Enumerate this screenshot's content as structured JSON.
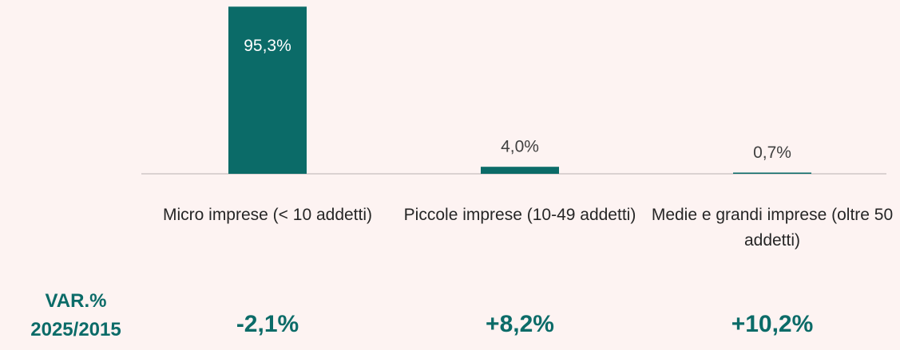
{
  "chart_data": {
    "type": "bar",
    "categories": [
      "Micro imprese (< 10 addetti)",
      "Piccole imprese (10-49 addetti)",
      "Medie e grandi imprese (oltre 50 addetti)"
    ],
    "values": [
      95.3,
      4.0,
      0.7
    ],
    "value_labels": [
      "95,3%",
      "4,0%",
      "0,7%"
    ],
    "color": "#0b6b68",
    "ylim": [
      0,
      100
    ],
    "variation_title": "VAR.% 2025/2015",
    "variation_labels": [
      "-2,1%",
      "+8,2%",
      "+10,2%"
    ]
  }
}
